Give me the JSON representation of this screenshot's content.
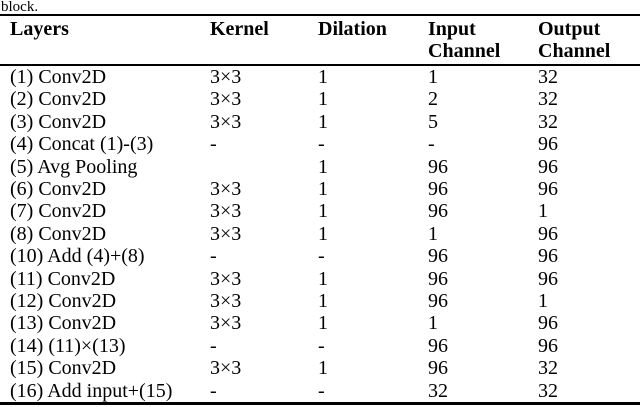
{
  "caption": {
    "text_fragment": "block."
  },
  "table": {
    "columns": [
      "Layers",
      "Kernel",
      "Dilation",
      "Input Channel",
      "Output Channel"
    ],
    "rows": [
      [
        "(1) Conv2D",
        "3×3",
        "1",
        "1",
        "32"
      ],
      [
        "(2) Conv2D",
        "3×3",
        "1",
        "2",
        "32"
      ],
      [
        "(3) Conv2D",
        "3×3",
        "1",
        "5",
        "32"
      ],
      [
        "(4) Concat (1)-(3)",
        "-",
        "-",
        "-",
        "96"
      ],
      [
        "(5) Avg Pooling",
        "",
        "1",
        "96",
        "96"
      ],
      [
        "(6) Conv2D",
        "3×3",
        "1",
        "96",
        "96"
      ],
      [
        "(7) Conv2D",
        "3×3",
        "1",
        "96",
        "1"
      ],
      [
        "(8) Conv2D",
        "3×3",
        "1",
        "1",
        "96"
      ],
      [
        "(10) Add (4)+(8)",
        "-",
        "-",
        "96",
        "96"
      ],
      [
        "(11) Conv2D",
        "3×3",
        "1",
        "96",
        "96"
      ],
      [
        "(12) Conv2D",
        "3×3",
        "1",
        "96",
        "1"
      ],
      [
        "(13) Conv2D",
        "3×3",
        "1",
        "1",
        "96"
      ],
      [
        "(14) (11)×(13)",
        "-",
        "-",
        "96",
        "96"
      ],
      [
        "(15) Conv2D",
        "3×3",
        "1",
        "96",
        "32"
      ],
      [
        "(16) Add input+(15)",
        "-",
        "-",
        "32",
        "32"
      ]
    ]
  }
}
